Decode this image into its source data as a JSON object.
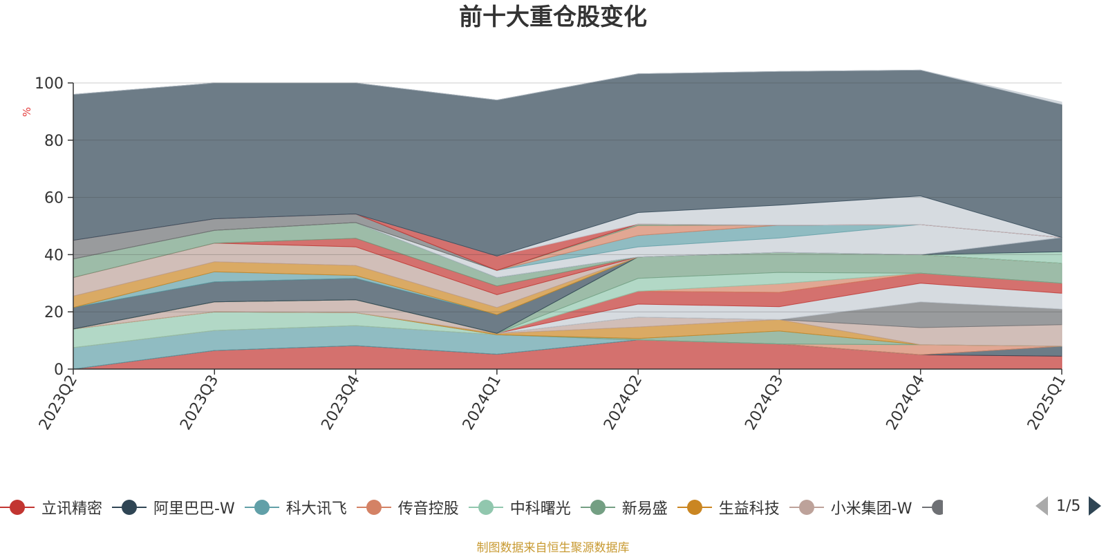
{
  "chart_data": {
    "type": "area",
    "stacked": true,
    "title": "前十大重仓股变化",
    "ylabel": "%",
    "ylim": [
      0,
      100
    ],
    "yticks": [
      0,
      20,
      40,
      60,
      80,
      100
    ],
    "categories": [
      "2023Q2",
      "2023Q3",
      "2023Q4",
      "2024Q1",
      "2024Q2",
      "2024Q3",
      "2024Q4",
      "2025Q1"
    ],
    "series": [
      {
        "name": "立讯精密",
        "color": "#c23531",
        "values": [
          0,
          6.5,
          8.2,
          5.2,
          10.2,
          8.8,
          5.0,
          4.5
        ]
      },
      {
        "name": "阿里巴巴-W",
        "color": "#2f4554",
        "values": [
          0,
          0,
          0,
          0,
          0,
          0,
          0,
          3.5
        ]
      },
      {
        "name": "科大讯飞",
        "color": "#61a0a8",
        "values": [
          7.5,
          7.0,
          7.0,
          6.8,
          0,
          0,
          0,
          0
        ]
      },
      {
        "name": "传音控股",
        "color": "#d48265",
        "values": [
          0,
          0,
          0,
          0,
          0,
          0,
          3.5,
          0
        ]
      },
      {
        "name": "中科曙光",
        "color": "#91c7ae",
        "values": [
          6.5,
          6.5,
          4.5,
          0,
          0,
          0,
          0,
          0
        ]
      },
      {
        "name": "新易盛",
        "color": "#749f83",
        "values": [
          0,
          0,
          0,
          0,
          0.5,
          4.5,
          0,
          0
        ]
      },
      {
        "name": "生益科技",
        "color": "#ca8622",
        "values": [
          0,
          0,
          0,
          0.5,
          4.0,
          4.0,
          0,
          0
        ]
      },
      {
        "name": "小米集团-W",
        "color": "#bda29a",
        "values": [
          0,
          3.5,
          4.5,
          0,
          3.5,
          0,
          6.0,
          7.5
        ]
      },
      {
        "name": "",
        "color": "#6e7074",
        "values": [
          0,
          0,
          0,
          0,
          0,
          0,
          9.0,
          5.5
        ]
      },
      {
        "name": "",
        "color": "#c4ccd3",
        "values": [
          0,
          0,
          0,
          0,
          4.5,
          4.5,
          6.5,
          5.5
        ]
      },
      {
        "name": "",
        "color": "#c23531",
        "values": [
          0,
          0,
          0,
          0,
          4.5,
          5.0,
          3.5,
          3.5
        ]
      },
      {
        "name": "",
        "color": "#d48265",
        "values": [
          0,
          0,
          0,
          0,
          0,
          3.0,
          0,
          0
        ]
      },
      {
        "name": "",
        "color": "#91c7ae",
        "values": [
          0,
          0,
          0,
          0,
          4.5,
          4.0,
          0,
          0
        ]
      },
      {
        "name": "",
        "color": "#749f83",
        "values": [
          0,
          0,
          0,
          0,
          7.5,
          7.0,
          6.5,
          7.0
        ]
      },
      {
        "name": "",
        "color": "#2f4554",
        "values": [
          7.5,
          7.0,
          7.5,
          6.5,
          0,
          0,
          0,
          0
        ]
      },
      {
        "name": "",
        "color": "#61a0a8",
        "values": [
          0,
          3.5,
          1.0,
          0,
          0,
          0,
          0,
          0
        ]
      },
      {
        "name": "",
        "color": "#ca8622",
        "values": [
          4.0,
          3.5,
          3.5,
          2.5,
          0,
          0,
          0,
          0
        ]
      },
      {
        "name": "",
        "color": "#bda29a",
        "values": [
          6.5,
          6.5,
          6.5,
          4.5,
          0,
          0,
          0,
          0
        ]
      },
      {
        "name": "",
        "color": "#c23531",
        "values": [
          0,
          0,
          3.0,
          3.0,
          0,
          0,
          0,
          0
        ]
      },
      {
        "name": "",
        "color": "#749f83",
        "values": [
          6.5,
          4.5,
          5.5,
          3.0,
          0,
          0,
          0,
          0
        ]
      },
      {
        "name": "",
        "color": "#91c7ae",
        "values": [
          0,
          0,
          0,
          0,
          0,
          0,
          0,
          4.0
        ]
      },
      {
        "name": "",
        "color": "#2f4554",
        "values": [
          0,
          0,
          0,
          0,
          0,
          0,
          0,
          5.0
        ]
      },
      {
        "name": "",
        "color": "#c4ccd3",
        "values": [
          0,
          0,
          0,
          2.5,
          3.5,
          5.0,
          10.5,
          0
        ]
      },
      {
        "name": "",
        "color": "#61a0a8",
        "values": [
          0,
          0,
          0,
          0,
          4.0,
          4.5,
          0,
          0
        ]
      },
      {
        "name": "",
        "color": "#d48265",
        "values": [
          0,
          0,
          0,
          0,
          3.5,
          0,
          0,
          0
        ]
      },
      {
        "name": "",
        "color": "#749f83",
        "values": [
          0,
          0,
          0,
          0,
          0.5,
          0,
          0,
          0
        ]
      },
      {
        "name": "",
        "color": "#6e7074",
        "values": [
          6.5,
          4.0,
          3.0,
          0,
          0,
          0,
          0,
          0
        ]
      },
      {
        "name": "",
        "color": "#c23531",
        "values": [
          0,
          0,
          0,
          5.0,
          0,
          0,
          0,
          0
        ]
      },
      {
        "name": "",
        "color": "#c4ccd3",
        "values": [
          0,
          0,
          0,
          0,
          4.0,
          7.0,
          10.0,
          0
        ]
      },
      {
        "name": "",
        "color": "#2f4554",
        "values": [
          51.0,
          47.5,
          45.8,
          54.5,
          48.5,
          46.7,
          44.0,
          46.5
        ]
      },
      {
        "name": "",
        "color": "#c4ccd3",
        "values": [
          0,
          0,
          0,
          0,
          0,
          0,
          0,
          0.8
        ]
      }
    ]
  },
  "legend": {
    "items": [
      {
        "name": "立讯精密",
        "color": "#c23531"
      },
      {
        "name": "阿里巴巴-W",
        "color": "#2f4554"
      },
      {
        "name": "科大讯飞",
        "color": "#61a0a8"
      },
      {
        "name": "传音控股",
        "color": "#d48265"
      },
      {
        "name": "中科曙光",
        "color": "#91c7ae"
      },
      {
        "name": "新易盛",
        "color": "#749f83"
      },
      {
        "name": "生益科技",
        "color": "#ca8622"
      },
      {
        "name": "小米集团-W",
        "color": "#bda29a"
      }
    ],
    "partial_color": "#6e7074",
    "pager": "1/5"
  },
  "source_note": "制图数据来自恒生聚源数据库"
}
